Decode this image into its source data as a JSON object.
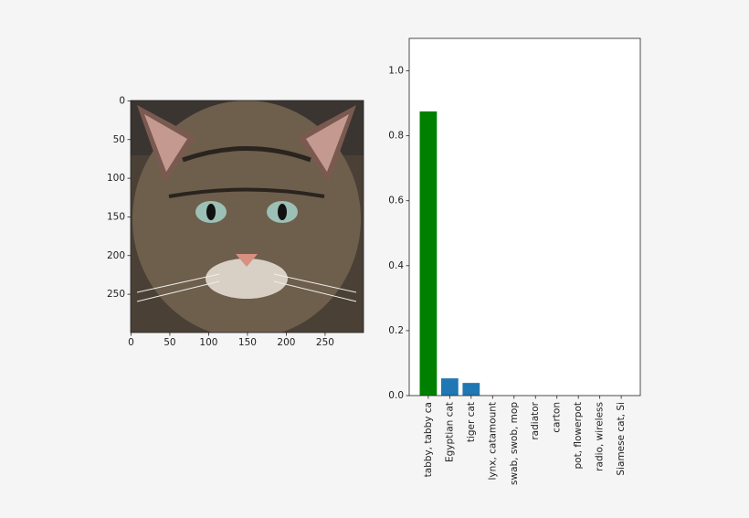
{
  "chart_data": [
    {
      "type": "image",
      "xlim": [
        -0.5,
        299.5
      ],
      "ylim": [
        299.5,
        -0.5
      ],
      "xticks": [
        0,
        50,
        100,
        150,
        200,
        250
      ],
      "yticks": [
        0,
        50,
        100,
        150,
        200,
        250
      ]
    },
    {
      "type": "bar",
      "categories": [
        "tabby, tabby ca",
        "Egyptian cat",
        "tiger cat",
        "lynx, catamount",
        "swab, swob, mop",
        "radiator",
        "carton",
        "pot, flowerpot",
        "radio, wireless",
        "Siamese cat, Si"
      ],
      "values": [
        0.875,
        0.053,
        0.039,
        0,
        0,
        0,
        0,
        0,
        0,
        0
      ],
      "colors": [
        "#008000",
        "#1f77b4",
        "#1f77b4",
        "#1f77b4",
        "#1f77b4",
        "#1f77b4",
        "#1f77b4",
        "#1f77b4",
        "#1f77b4",
        "#1f77b4"
      ],
      "xlim": [
        -0.89,
        9.89
      ],
      "ylim": [
        0,
        1.1
      ],
      "yticks": [
        {
          "value": 0,
          "label": "0.0"
        },
        0.2,
        0.4,
        0.6,
        0.8,
        {
          "value": 1,
          "label": "1.0"
        }
      ]
    }
  ]
}
